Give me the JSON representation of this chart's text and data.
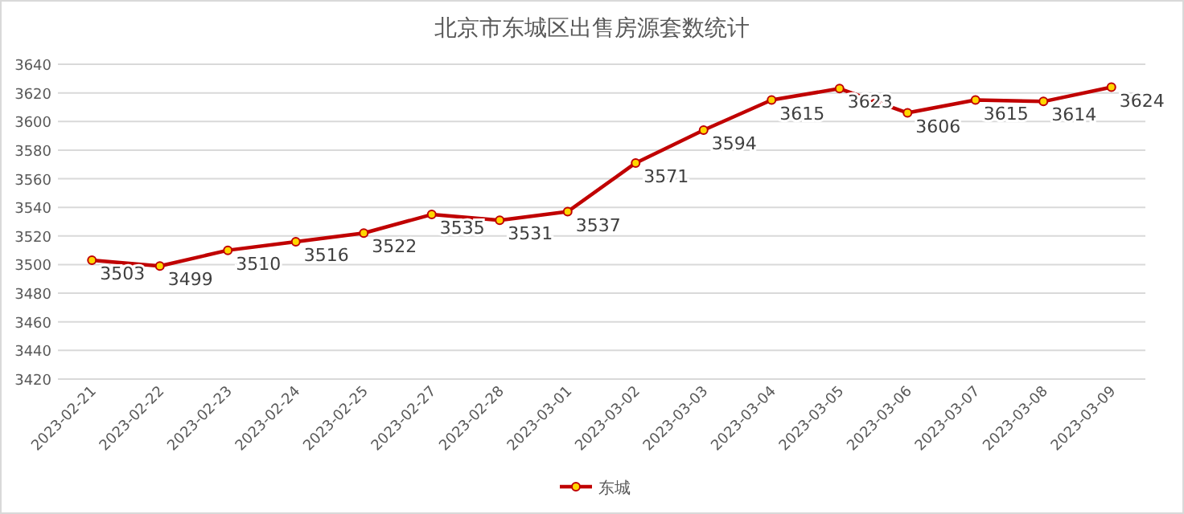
{
  "chart_data": {
    "type": "line",
    "title": "北京市东城区出售房源套数统计",
    "categories": [
      "2023-02-21",
      "2023-02-22",
      "2023-02-23",
      "2023-02-24",
      "2023-02-25",
      "2023-02-27",
      "2023-02-28",
      "2023-03-01",
      "2023-03-02",
      "2023-03-03",
      "2023-03-04",
      "2023-03-05",
      "2023-03-06",
      "2023-03-07",
      "2023-03-08",
      "2023-03-09"
    ],
    "series": [
      {
        "name": "东城",
        "color": "#c00000",
        "values": [
          3503,
          3499,
          3510,
          3516,
          3522,
          3535,
          3531,
          3537,
          3571,
          3594,
          3615,
          3623,
          3606,
          3615,
          3614,
          3624
        ]
      }
    ],
    "ylim": [
      3420,
      3640
    ],
    "yticks": [
      3420,
      3440,
      3460,
      3480,
      3500,
      3520,
      3540,
      3560,
      3580,
      3600,
      3620,
      3640
    ],
    "grid": "y",
    "legend": "bottom",
    "marker": "circle",
    "line_style": "solid",
    "data_labels": true
  }
}
